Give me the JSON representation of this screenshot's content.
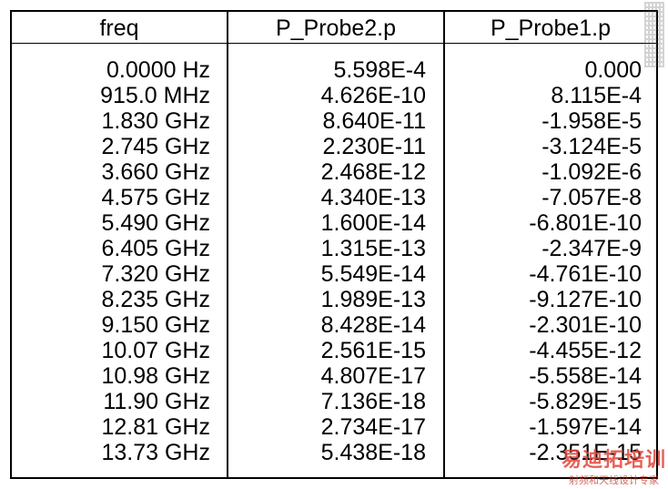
{
  "table": {
    "headers": [
      "freq",
      "P_Probe2.p",
      "P_Probe1.p"
    ],
    "freq": [
      "0.0000 Hz",
      "915.0 MHz",
      "1.830 GHz",
      "2.745 GHz",
      "3.660 GHz",
      "4.575 GHz",
      "5.490 GHz",
      "6.405 GHz",
      "7.320 GHz",
      "8.235 GHz",
      "9.150 GHz",
      "10.07 GHz",
      "10.98 GHz",
      "11.90 GHz",
      "12.81 GHz",
      "13.73 GHz"
    ],
    "p_probe2": [
      "5.598E-4",
      "4.626E-10",
      "8.640E-11",
      "2.230E-11",
      "2.468E-12",
      "4.340E-13",
      "1.600E-14",
      "1.315E-13",
      "5.549E-14",
      "1.989E-13",
      "8.428E-14",
      "2.561E-15",
      "4.807E-17",
      "7.136E-18",
      "2.734E-17",
      "5.438E-18"
    ],
    "p_probe1": [
      "0.000",
      "8.115E-4",
      "-1.958E-5",
      "-3.124E-5",
      "-1.092E-6",
      "-7.057E-8",
      "-6.801E-10",
      "-2.347E-9",
      "-4.761E-10",
      "-9.127E-10",
      "-2.301E-10",
      "-4.455E-12",
      "-5.558E-14",
      "-5.829E-15",
      "-1.597E-14",
      "-2.351E-15"
    ]
  },
  "watermark": {
    "brand": "易迪拓培训",
    "tagline": "射频和天线设计专家"
  }
}
